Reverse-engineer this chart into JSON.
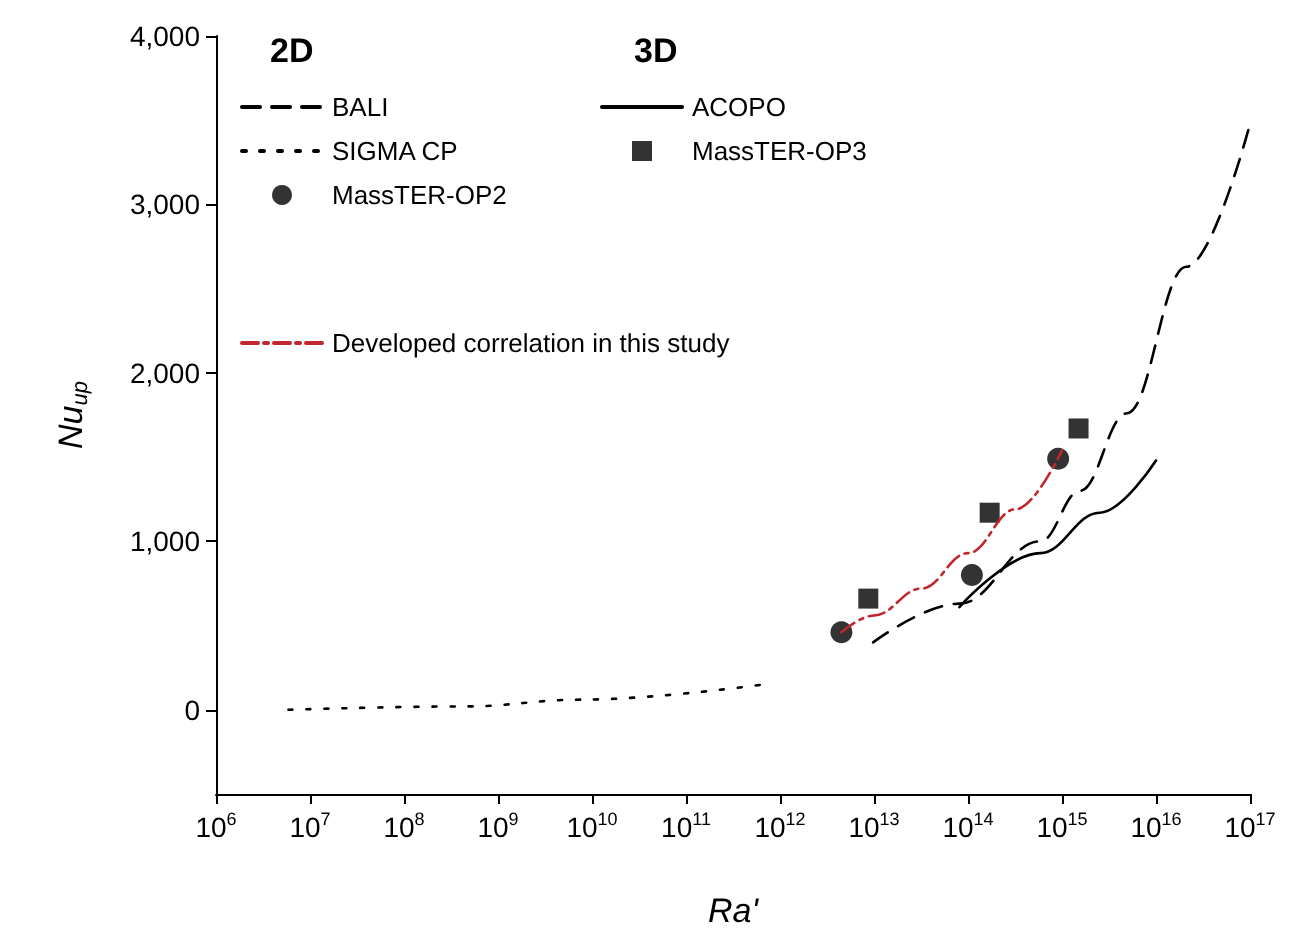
{
  "chart_data": {
    "type": "line",
    "xlabel": "Ra'",
    "ylabel": "Nu$_{up}$",
    "log": "x",
    "xlim": [
      1000000.0,
      1e+17
    ],
    "ylim": [
      -500,
      4000
    ],
    "xticks": [
      {
        "value": 1000000.0,
        "label": "10$^{6}$"
      },
      {
        "value": 10000000.0,
        "label": "10$^{7}$"
      },
      {
        "value": 100000000.0,
        "label": "10$^{8}$"
      },
      {
        "value": 1000000000.0,
        "label": "10$^{9}$"
      },
      {
        "value": 10000000000.0,
        "label": "10$^{10}$"
      },
      {
        "value": 100000000000.0,
        "label": "10$^{11}$"
      },
      {
        "value": 1000000000000.0,
        "label": "10$^{12}$"
      },
      {
        "value": 10000000000000.0,
        "label": "10$^{13}$"
      },
      {
        "value": 100000000000000.0,
        "label": "10$^{14}$"
      },
      {
        "value": 1000000000000000.0,
        "label": "10$^{15}$"
      },
      {
        "value": 1e+16,
        "label": "10$^{16}$"
      },
      {
        "value": 1e+17,
        "label": "10$^{17}$"
      }
    ],
    "yticks": [
      {
        "value": 0,
        "label": "0"
      },
      {
        "value": 1000,
        "label": "1,000"
      },
      {
        "value": 2000,
        "label": "2,000"
      },
      {
        "value": 3000,
        "label": "3,000"
      },
      {
        "value": 4000,
        "label": "4,000"
      }
    ],
    "grid": false,
    "legend": "top left",
    "annotations": [
      "2D",
      "3D"
    ],
    "series": [
      {
        "name": "BALI",
        "color": "#000000",
        "line_style": "dashed",
        "marker": "none",
        "x": [
          9800000000000.0,
          81000000000000.0,
          590000000000000.0,
          1550000000000000.0,
          4900000000000000.0,
          2.1e+16,
          9.8e+16
        ],
        "values": [
          400,
          630,
          1000,
          1300,
          1760,
          2630,
          3460
        ]
      },
      {
        "name": "SIGMA CP",
        "color": "#000000",
        "line_style": "dotted",
        "marker": "none",
        "x": [
          5900000.0,
          460000000.0,
          7400000000.0,
          660000000000.0
        ],
        "values": [
          0,
          20,
          60,
          150
        ]
      },
      {
        "name": "MassTER-OP2",
        "type": "scatter",
        "color": "#000000",
        "marker": "circle",
        "x": [
          4500000000000.0,
          110000000000000.0,
          910000000000000.0
        ],
        "values": [
          460,
          800,
          1490
        ]
      },
      {
        "name": "ACOPO",
        "color": "#000000",
        "line_style": "solid",
        "marker": "none",
        "x": [
          81000000000000.0,
          590000000000000.0,
          2500000000000000.0,
          1e+16
        ],
        "values": [
          610,
          930,
          1170,
          1480
        ]
      },
      {
        "name": "MassTER-OP3",
        "type": "scatter",
        "color": "#000000",
        "marker": "square",
        "x": [
          8700000000000.0,
          170000000000000.0,
          1500000000000000.0
        ],
        "values": [
          660,
          1170,
          1670
        ]
      },
      {
        "name": "Developed correlation in this study",
        "color": "#c0282d",
        "line_style": "dashdot",
        "marker": "none",
        "x": [
          4500000000000.0,
          10000000000000.0,
          32000000000000.0,
          100000000000000.0,
          320000000000000.0,
          1000000000000000.0
        ],
        "values": [
          460,
          560,
          720,
          930,
          1190,
          1540
        ]
      }
    ]
  }
}
